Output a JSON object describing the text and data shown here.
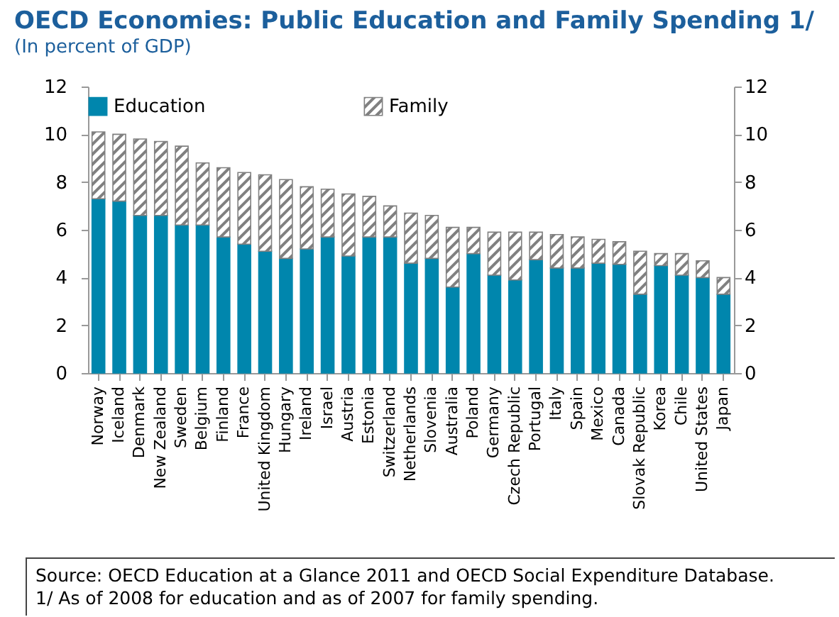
{
  "chart_data": {
    "type": "bar",
    "title": "OECD Economies: Public Education and Family Spending 1/",
    "subtitle": "(In percent of GDP)",
    "categories": [
      "Norway",
      "Iceland",
      "Denmark",
      "New Zealand",
      "Sweden",
      "Belgium",
      "Finland",
      "France",
      "United Kingdom",
      "Hungary",
      "Ireland",
      "Israel",
      "Austria",
      "Estonia",
      "Switzerland",
      "Netherlands",
      "Slovenia",
      "Australia",
      "Poland",
      "Germany",
      "Czech Republic",
      "Portugal",
      "Italy",
      "Spain",
      "Mexico",
      "Canada",
      "Slovak Republic",
      "Korea",
      "Chile",
      "United States",
      "Japan"
    ],
    "stacked": true,
    "series": [
      {
        "name": "Education",
        "color": "#0086ad",
        "values": [
          7.3,
          7.2,
          6.6,
          6.6,
          6.2,
          6.2,
          5.7,
          5.4,
          5.1,
          4.8,
          5.2,
          5.7,
          4.9,
          5.7,
          5.7,
          4.6,
          4.8,
          3.6,
          5.0,
          4.1,
          3.9,
          4.75,
          4.4,
          4.4,
          4.6,
          4.55,
          3.3,
          4.5,
          4.1,
          4.0,
          3.3
        ]
      },
      {
        "name": "Family",
        "color": "#808080",
        "values": [
          2.8,
          2.8,
          3.2,
          3.1,
          3.3,
          2.6,
          2.9,
          3.0,
          3.2,
          3.3,
          2.6,
          2.0,
          2.6,
          1.7,
          1.3,
          2.1,
          1.8,
          2.5,
          1.1,
          1.8,
          2.0,
          1.15,
          1.4,
          1.3,
          1.0,
          0.95,
          1.8,
          0.5,
          0.9,
          0.7,
          0.7
        ]
      }
    ],
    "ylim": [
      0,
      12
    ],
    "yticks": [
      0,
      2,
      4,
      6,
      8,
      10,
      12
    ],
    "y2lim": [
      0,
      12
    ],
    "y2ticks": [
      0,
      2,
      4,
      6,
      8,
      10,
      12
    ],
    "grid": false,
    "legend": "top",
    "annotations": [
      "Source: OECD Education at a Glance 2011 and OECD Social Expenditure Database.",
      "1/ As of 2008 for education and as of 2007 for family spending."
    ]
  }
}
